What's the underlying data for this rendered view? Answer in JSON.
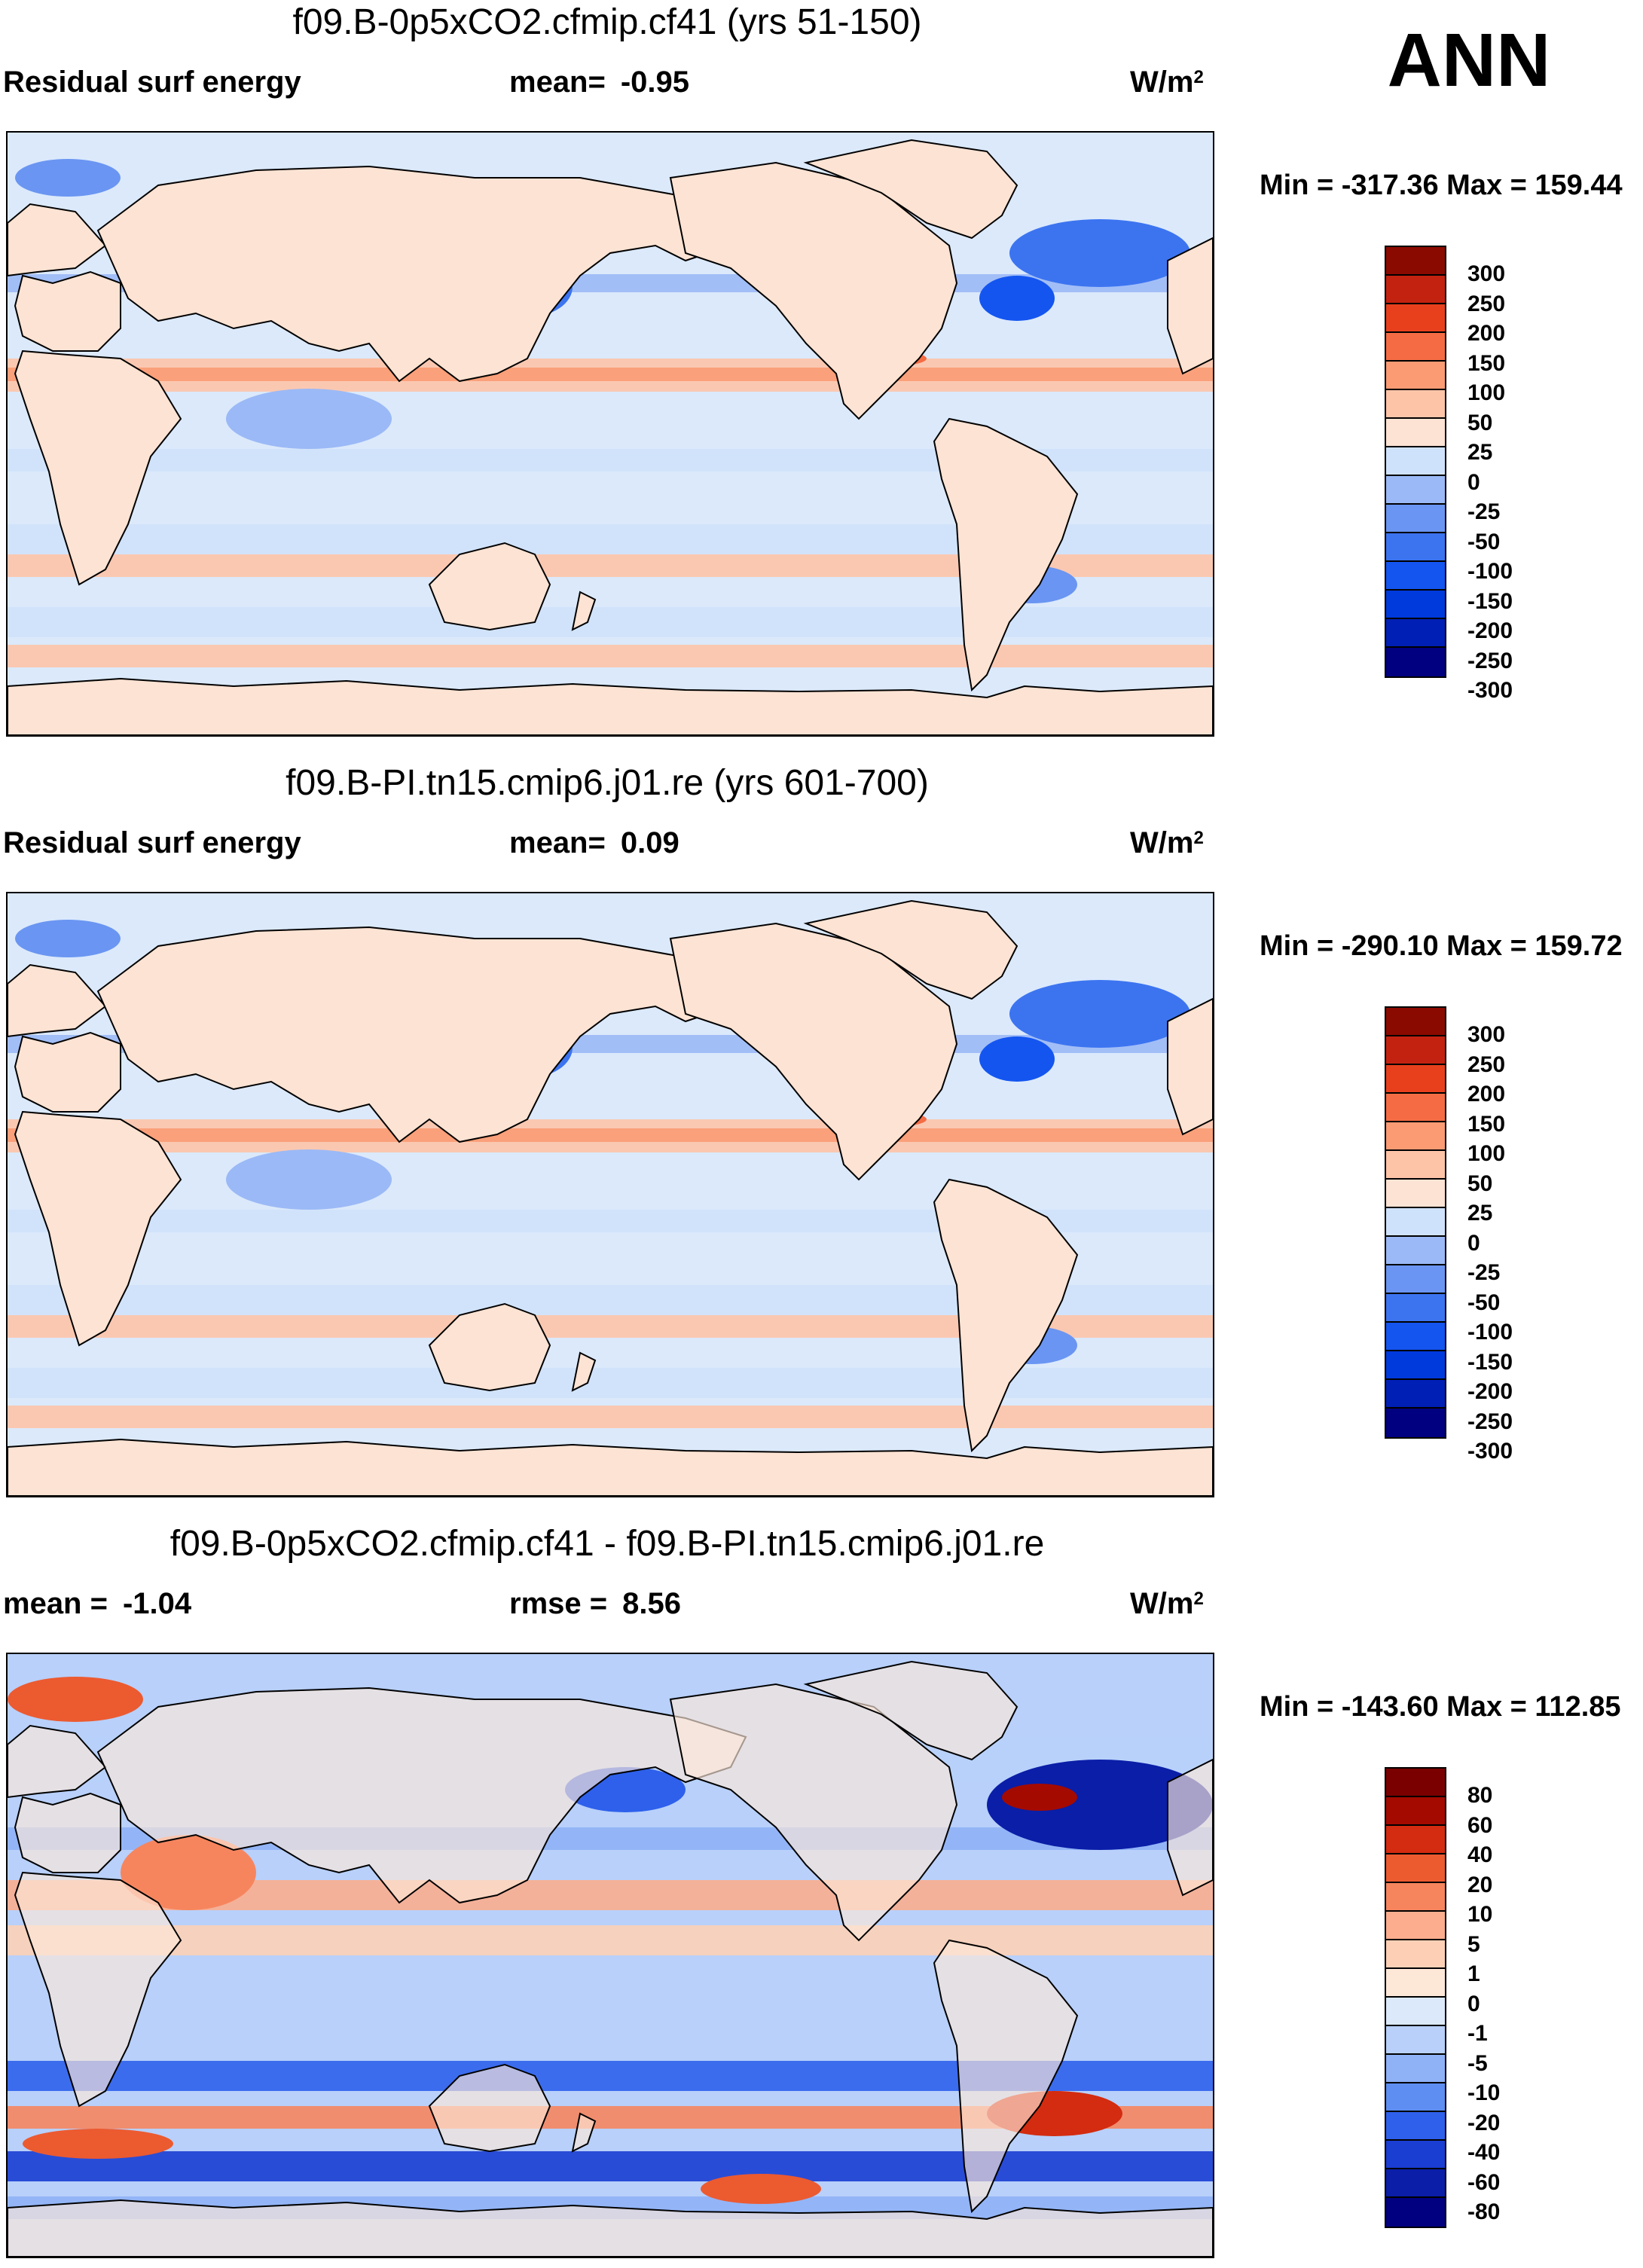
{
  "season_label": "ANN",
  "colors": {
    "abs": [
      "#000080",
      "#001fb4",
      "#0039dc",
      "#1455f0",
      "#3c74f0",
      "#6a95f2",
      "#9bb9f6",
      "#cfe2fb",
      "#fde3d3",
      "#fdc4a8",
      "#fa9b74",
      "#f56c44",
      "#e8401c",
      "#c42210",
      "#8b0a00"
    ],
    "diff": [
      "#000080",
      "#0a1ea8",
      "#1a3dd2",
      "#2e60ec",
      "#5e8ef2",
      "#8fb1f6",
      "#b8d0fa",
      "#dbe9fb",
      "#fde8d8",
      "#fdd0b6",
      "#fbad8e",
      "#f6855e",
      "#ec5a30",
      "#d32c10",
      "#a40a00",
      "#7a0000"
    ]
  },
  "panels": [
    {
      "title": "f09.B-0p5xCO2.cfmip.cf41 (yrs 51-150)",
      "left_label": "Residual surf energy",
      "mid_key": "mean=",
      "mid_val": "-0.95",
      "units": "W/m",
      "units_sup": "2",
      "minmax": "Min = -317.36 Max = 159.44",
      "cb_labels": [
        "300",
        "250",
        "200",
        "150",
        "100",
        "50",
        "25",
        "0",
        "-25",
        "-50",
        "-100",
        "-150",
        "-200",
        "-250",
        "-300"
      ]
    },
    {
      "title": "f09.B-PI.tn15.cmip6.j01.re (yrs 601-700)",
      "left_label": "Residual surf energy",
      "mid_key": "mean=",
      "mid_val": "0.09",
      "units": "W/m",
      "units_sup": "2",
      "minmax": "Min = -290.10 Max = 159.72",
      "cb_labels": [
        "300",
        "250",
        "200",
        "150",
        "100",
        "50",
        "25",
        "0",
        "-25",
        "-50",
        "-100",
        "-150",
        "-200",
        "-250",
        "-300"
      ]
    },
    {
      "title": "f09.B-0p5xCO2.cfmip.cf41 - f09.B-PI.tn15.cmip6.j01.re",
      "left_key": "mean =",
      "left_val": "-1.04",
      "mid_key": "rmse =",
      "mid_val": "8.56",
      "units": "W/m",
      "units_sup": "2",
      "minmax": "Min = -143.60 Max = 112.85",
      "cb_labels": [
        "80",
        "60",
        "40",
        "20",
        "10",
        "5",
        "1",
        "0",
        "-1",
        "-5",
        "-10",
        "-20",
        "-40",
        "-60",
        "-80"
      ]
    }
  ],
  "chart_data": [
    {
      "type": "heatmap",
      "title": "f09.B-0p5xCO2.cfmip.cf41 (yrs 51-150)",
      "variable": "Residual surf energy",
      "units": "W/m2",
      "mean": -0.95,
      "min": -317.36,
      "max": 159.44,
      "contour_levels": [
        -300,
        -250,
        -200,
        -150,
        -100,
        -50,
        -25,
        0,
        25,
        50,
        100,
        150,
        200,
        250,
        300
      ]
    },
    {
      "type": "heatmap",
      "title": "f09.B-PI.tn15.cmip6.j01.re (yrs 601-700)",
      "variable": "Residual surf energy",
      "units": "W/m2",
      "mean": 0.09,
      "min": -290.1,
      "max": 159.72,
      "contour_levels": [
        -300,
        -250,
        -200,
        -150,
        -100,
        -50,
        -25,
        0,
        25,
        50,
        100,
        150,
        200,
        250,
        300
      ]
    },
    {
      "type": "heatmap",
      "title": "f09.B-0p5xCO2.cfmip.cf41 - f09.B-PI.tn15.cmip6.j01.re",
      "units": "W/m2",
      "mean": -1.04,
      "rmse": 8.56,
      "min": -143.6,
      "max": 112.85,
      "contour_levels": [
        -80,
        -60,
        -40,
        -20,
        -10,
        -5,
        -1,
        0,
        1,
        5,
        10,
        20,
        40,
        60,
        80
      ]
    }
  ]
}
